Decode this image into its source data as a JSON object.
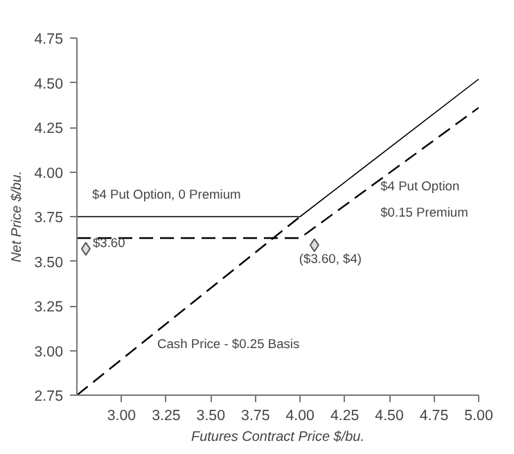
{
  "chart_data": {
    "type": "line",
    "xlabel": "Futures Contract Price $/bu.",
    "ylabel": "Net Price $/bu.",
    "xlim": [
      2.75,
      5.0
    ],
    "ylim": [
      2.75,
      4.75
    ],
    "xticks": [
      {
        "value": 3.0,
        "label": "3.00"
      },
      {
        "value": 3.25,
        "label": "3.25"
      },
      {
        "value": 3.5,
        "label": "3.50"
      },
      {
        "value": 3.75,
        "label": "3.75"
      },
      {
        "value": 4.0,
        "label": "4.00"
      },
      {
        "value": 4.25,
        "label": "4.25"
      },
      {
        "value": 4.5,
        "label": "4.50"
      },
      {
        "value": 4.75,
        "label": "4.75"
      },
      {
        "value": 5.0,
        "label": "5.00"
      }
    ],
    "yticks": [
      2.75,
      {
        "value": 3.0,
        "label": "3.00"
      },
      3.25,
      {
        "value": 3.5,
        "label": "3.50"
      },
      3.75,
      {
        "value": 4.0,
        "label": "4.00"
      },
      4.25,
      {
        "value": 4.5,
        "label": "4.50"
      },
      4.75
    ],
    "grid": false,
    "series": [
      {
        "name": "$4 Put Option, 0 Premium",
        "color": "#000000",
        "line_style": "solid",
        "x": [
          2.75,
          4.0,
          5.0
        ],
        "values": [
          3.75,
          3.75,
          4.52
        ]
      },
      {
        "name": "$4 Put Option\n$0.15 Premium",
        "color": "#000000",
        "line_style": "dashed",
        "x": [
          2.75,
          4.0,
          5.0
        ],
        "values": [
          3.63,
          3.63,
          4.36
        ]
      },
      {
        "name": "Cash Price - $0.25 Basis",
        "color": "#000000",
        "line_style": "dashed",
        "x": [
          2.75,
          4.0
        ],
        "values": [
          2.75,
          3.75
        ]
      },
      {
        "type": "scatter",
        "color": "#555555",
        "marker": "diamond",
        "x": [
          2.8,
          4.08
        ],
        "values": [
          3.57,
          3.59
        ]
      }
    ],
    "annotations": [
      "$3.60",
      "($3.60, $4)"
    ]
  }
}
